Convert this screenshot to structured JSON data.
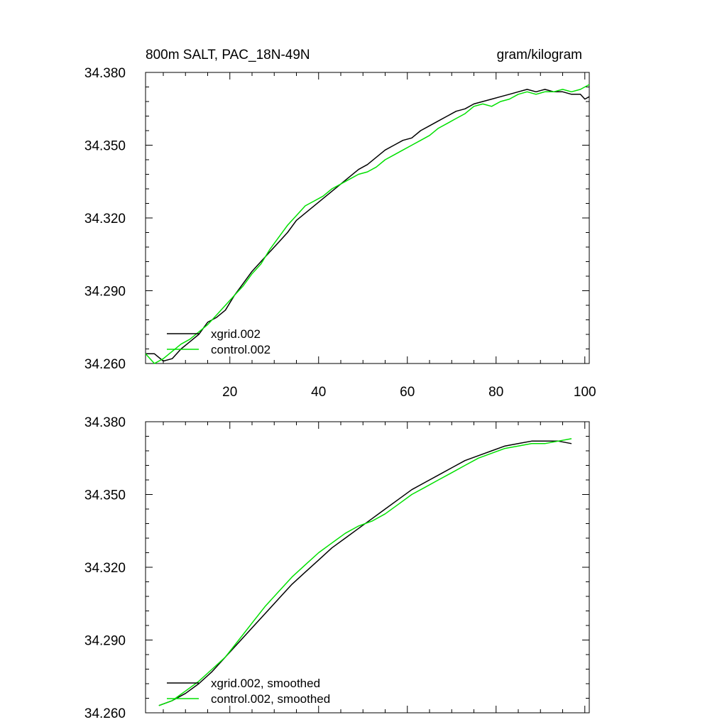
{
  "figure": {
    "title_left": "800m SALT, PAC_18N-49N",
    "title_right": "gram/kilogram"
  },
  "colors": {
    "xgrid": "#000000",
    "control": "#00e000"
  },
  "chart_data": [
    {
      "type": "line",
      "xlim": [
        1,
        101
      ],
      "ylim": [
        34.26,
        34.38
      ],
      "xticks": [
        20,
        40,
        60,
        80,
        100
      ],
      "xtick_labels": [
        "20",
        "40",
        "60",
        "80",
        "100"
      ],
      "yticks": [
        34.26,
        34.29,
        34.32,
        34.35,
        34.38
      ],
      "ytick_labels": [
        "34.260",
        "34.290",
        "34.320",
        "34.350",
        "34.380"
      ],
      "legend": [
        "xgrid.002",
        "control.002"
      ],
      "series": [
        {
          "name": "xgrid.002",
          "x": [
            1,
            3,
            5,
            7,
            9,
            11,
            13,
            15,
            17,
            19,
            21,
            23,
            25,
            27,
            29,
            31,
            33,
            35,
            37,
            39,
            41,
            43,
            45,
            47,
            49,
            51,
            53,
            55,
            57,
            59,
            61,
            63,
            65,
            67,
            69,
            71,
            73,
            75,
            77,
            79,
            81,
            83,
            85,
            87,
            89,
            91,
            93,
            95,
            97,
            99,
            100,
            101
          ],
          "y": [
            34.264,
            34.264,
            34.261,
            34.262,
            34.266,
            34.269,
            34.272,
            34.277,
            34.279,
            34.282,
            34.288,
            34.293,
            34.298,
            34.302,
            34.306,
            34.31,
            34.314,
            34.319,
            34.322,
            34.325,
            34.328,
            34.331,
            34.334,
            34.337,
            34.34,
            34.342,
            34.345,
            34.348,
            34.35,
            34.352,
            34.353,
            34.356,
            34.358,
            34.36,
            34.362,
            34.364,
            34.365,
            34.367,
            34.368,
            34.369,
            34.37,
            34.371,
            34.372,
            34.373,
            34.372,
            34.373,
            34.372,
            34.372,
            34.371,
            34.371,
            34.369,
            34.37
          ]
        },
        {
          "name": "control.002",
          "x": [
            1,
            3,
            5,
            7,
            9,
            11,
            13,
            15,
            17,
            19,
            21,
            23,
            25,
            27,
            29,
            31,
            33,
            35,
            37,
            39,
            41,
            43,
            45,
            47,
            49,
            51,
            53,
            55,
            57,
            59,
            61,
            63,
            65,
            67,
            69,
            71,
            73,
            75,
            77,
            79,
            81,
            83,
            85,
            87,
            89,
            91,
            93,
            95,
            97,
            99,
            101
          ],
          "y": [
            34.264,
            34.26,
            34.262,
            34.265,
            34.268,
            34.27,
            34.273,
            34.276,
            34.28,
            34.284,
            34.288,
            34.292,
            34.297,
            34.301,
            34.307,
            34.312,
            34.317,
            34.321,
            34.325,
            34.327,
            34.329,
            34.332,
            34.334,
            34.336,
            34.338,
            34.339,
            34.341,
            34.344,
            34.346,
            34.348,
            34.35,
            34.352,
            34.354,
            34.357,
            34.359,
            34.361,
            34.363,
            34.366,
            34.367,
            34.366,
            34.368,
            34.369,
            34.371,
            34.372,
            34.371,
            34.372,
            34.372,
            34.373,
            34.372,
            34.373,
            34.375
          ]
        }
      ]
    },
    {
      "type": "line",
      "xlim": [
        1,
        101
      ],
      "ylim": [
        34.26,
        34.38
      ],
      "xticks": [
        20,
        40,
        60,
        80,
        100
      ],
      "xtick_labels": [],
      "yticks": [
        34.26,
        34.29,
        34.32,
        34.35,
        34.38
      ],
      "ytick_labels": [
        "34.260",
        "34.290",
        "34.320",
        "34.350",
        "34.380"
      ],
      "legend": [
        "xgrid.002, smoothed",
        "control.002, smoothed"
      ],
      "series": [
        {
          "name": "xgrid.002, smoothed",
          "x": [
            4,
            7,
            10,
            13,
            16,
            19,
            22,
            25,
            28,
            31,
            34,
            37,
            40,
            43,
            46,
            49,
            52,
            55,
            58,
            61,
            64,
            67,
            70,
            73,
            76,
            79,
            82,
            85,
            88,
            91,
            94,
            97
          ],
          "y": [
            34.263,
            34.265,
            34.268,
            34.272,
            34.277,
            34.283,
            34.289,
            34.295,
            34.301,
            34.307,
            34.313,
            34.318,
            34.323,
            34.328,
            34.332,
            34.336,
            34.34,
            34.344,
            34.348,
            34.352,
            34.355,
            34.358,
            34.361,
            34.364,
            34.366,
            34.368,
            34.37,
            34.371,
            34.372,
            34.372,
            34.372,
            34.371
          ]
        },
        {
          "name": "control.002, smoothed",
          "x": [
            4,
            7,
            10,
            13,
            16,
            19,
            22,
            25,
            28,
            31,
            34,
            37,
            40,
            43,
            46,
            49,
            52,
            55,
            58,
            61,
            64,
            67,
            70,
            73,
            76,
            79,
            82,
            85,
            88,
            91,
            94,
            97
          ],
          "y": [
            34.263,
            34.265,
            34.269,
            34.273,
            34.278,
            34.283,
            34.29,
            34.297,
            34.304,
            34.31,
            34.316,
            34.321,
            34.326,
            34.33,
            34.334,
            34.337,
            34.339,
            34.342,
            34.346,
            34.35,
            34.353,
            34.356,
            34.359,
            34.362,
            34.365,
            34.367,
            34.369,
            34.37,
            34.371,
            34.371,
            34.372,
            34.373
          ]
        }
      ]
    }
  ]
}
